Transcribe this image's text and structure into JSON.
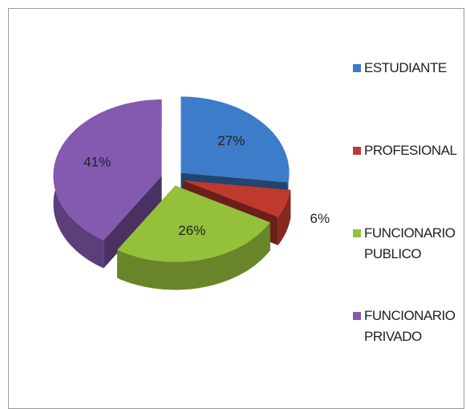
{
  "chart_data": {
    "type": "pie",
    "categories": [
      "ESTUDIANTE",
      "PROFESIONAL",
      "FUNCIONARIO PUBLICO",
      "FUNCIONARIO PRIVADO"
    ],
    "values": [
      27,
      6,
      26,
      41
    ],
    "value_labels": [
      "27%",
      "6%",
      "26%",
      "41%"
    ],
    "colors": [
      "#3d7cc9",
      "#c0392f",
      "#95c03a",
      "#8459b0"
    ],
    "legend": "right"
  }
}
